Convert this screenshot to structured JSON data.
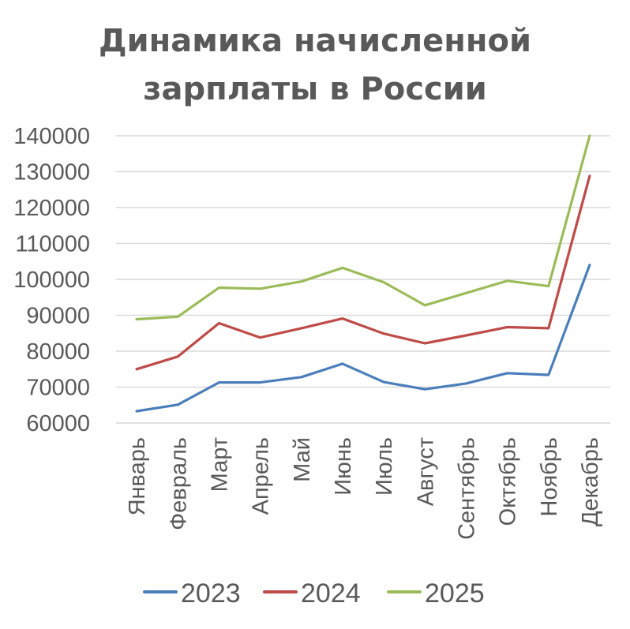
{
  "chart_data": {
    "type": "line",
    "title_lines": [
      "Динамика начисленной",
      "зарплаты в России"
    ],
    "categories": [
      "Январь",
      "Февраль",
      "Март",
      "Апрель",
      "Май",
      "Июнь",
      "Июль",
      "Август",
      "Сентябрь",
      "Октябрь",
      "Ноябрь",
      "Декабрь"
    ],
    "y_ticks": [
      "60000",
      "70000",
      "80000",
      "90000",
      "100000",
      "110000",
      "120000",
      "130000",
      "140000"
    ],
    "ylim": [
      60000,
      140000
    ],
    "grid": true,
    "legend_position": "bottom",
    "series": [
      {
        "name": "2023",
        "color": "#4a7ebb",
        "values": [
          63300,
          65100,
          71300,
          71300,
          72800,
          76500,
          71400,
          69400,
          71000,
          73900,
          73400,
          104000
        ]
      },
      {
        "name": "2024",
        "color": "#be4b48",
        "values": [
          75000,
          78500,
          87800,
          83800,
          86400,
          89100,
          84900,
          82200,
          84400,
          86700,
          86400,
          128800
        ]
      },
      {
        "name": "2025",
        "color": "#9bbb59",
        "values": [
          88900,
          89600,
          97700,
          97400,
          99400,
          103200,
          99200,
          92800,
          96200,
          99600,
          98100,
          140000
        ]
      }
    ]
  }
}
